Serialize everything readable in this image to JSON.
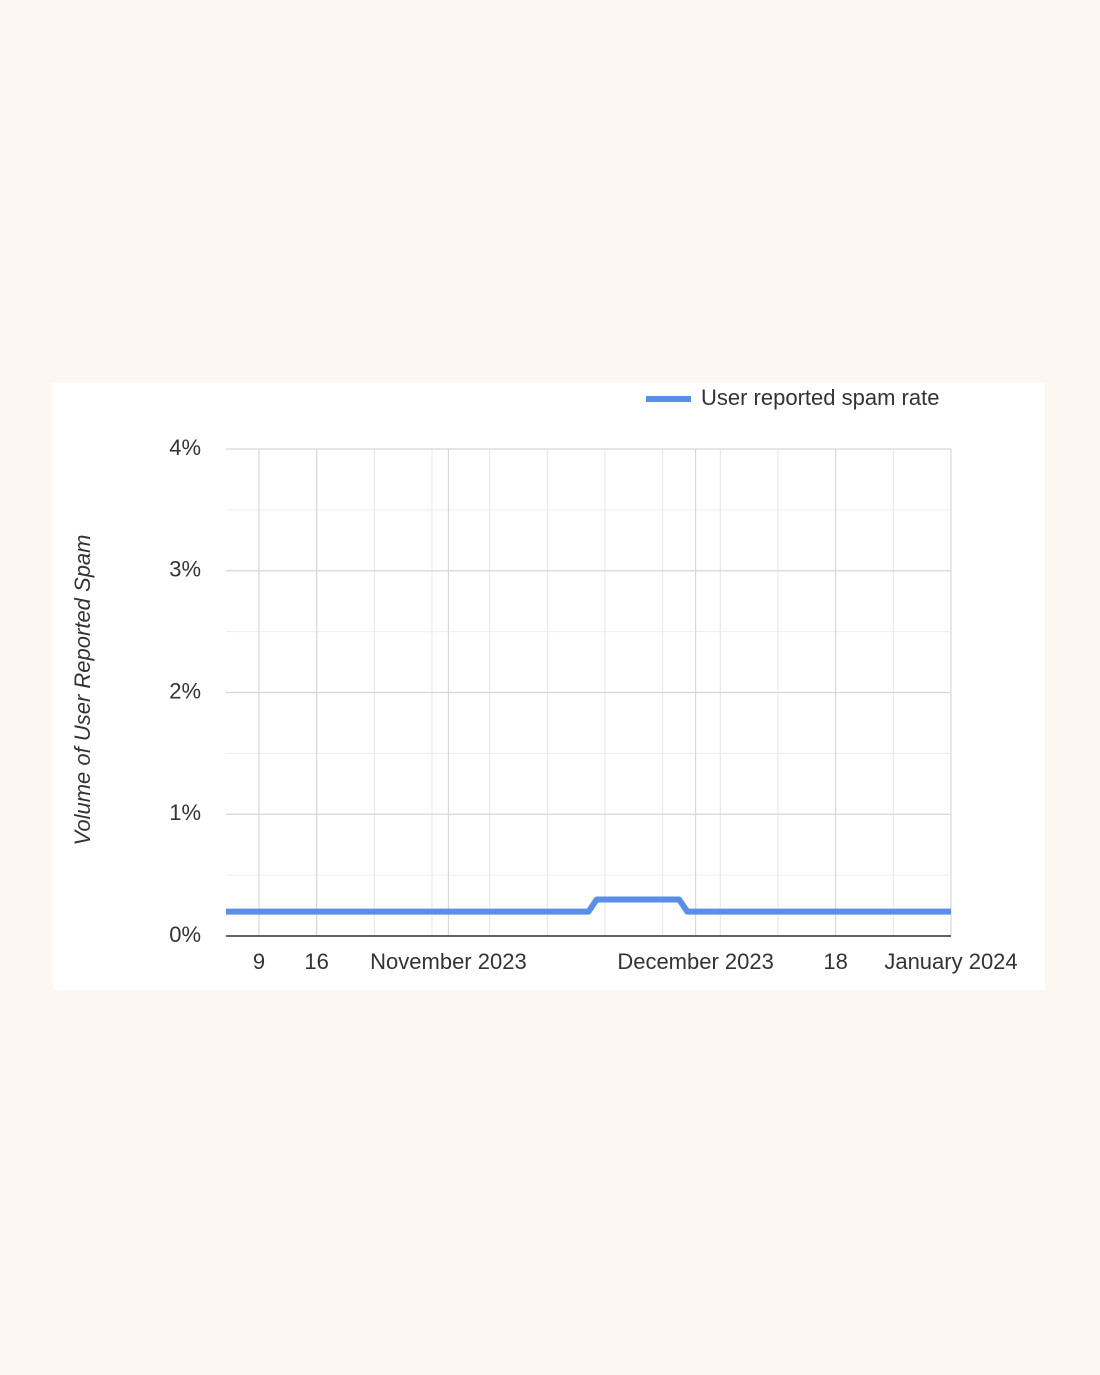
{
  "chart_data": {
    "type": "line",
    "y_label": "Volume of User Reported Spam",
    "legend": "top-right",
    "grid": true,
    "x": [
      "2023-10-05",
      "2023-11-18",
      "2023-11-19",
      "2023-11-29",
      "2023-11-30",
      "2024-01-01"
    ],
    "series": [
      {
        "name": "User reported spam rate",
        "color": "#5b8fe6",
        "values": [
          0.2,
          0.2,
          0.3,
          0.3,
          0.2,
          0.2
        ]
      }
    ],
    "xlim": [
      "2023-10-05",
      "2024-01-01"
    ],
    "xticks": [
      {
        "value": "2023-10-09",
        "label": "9"
      },
      {
        "value": "2023-10-16",
        "label": "16"
      },
      {
        "value": "2023-11-01",
        "label": "November 2023"
      },
      {
        "value": "2023-12-01",
        "label": "December 2023"
      },
      {
        "value": "2023-12-18",
        "label": "18"
      },
      {
        "value": "2024-01-01",
        "label": "January 2024"
      }
    ],
    "x_minor_ticks": [
      "2023-10-23",
      "2023-10-30",
      "2023-11-06",
      "2023-11-13",
      "2023-11-20",
      "2023-11-27",
      "2023-12-04",
      "2023-12-11",
      "2023-12-25"
    ],
    "ylim": [
      0,
      4
    ],
    "yticks": [
      {
        "value": 0,
        "label": "0%"
      },
      {
        "value": 1,
        "label": "1%"
      },
      {
        "value": 2,
        "label": "2%"
      },
      {
        "value": 3,
        "label": "3%"
      },
      {
        "value": 4,
        "label": "4%"
      }
    ],
    "y_minor_ticks": [
      0.5,
      1.5,
      2.5,
      3.5
    ]
  }
}
